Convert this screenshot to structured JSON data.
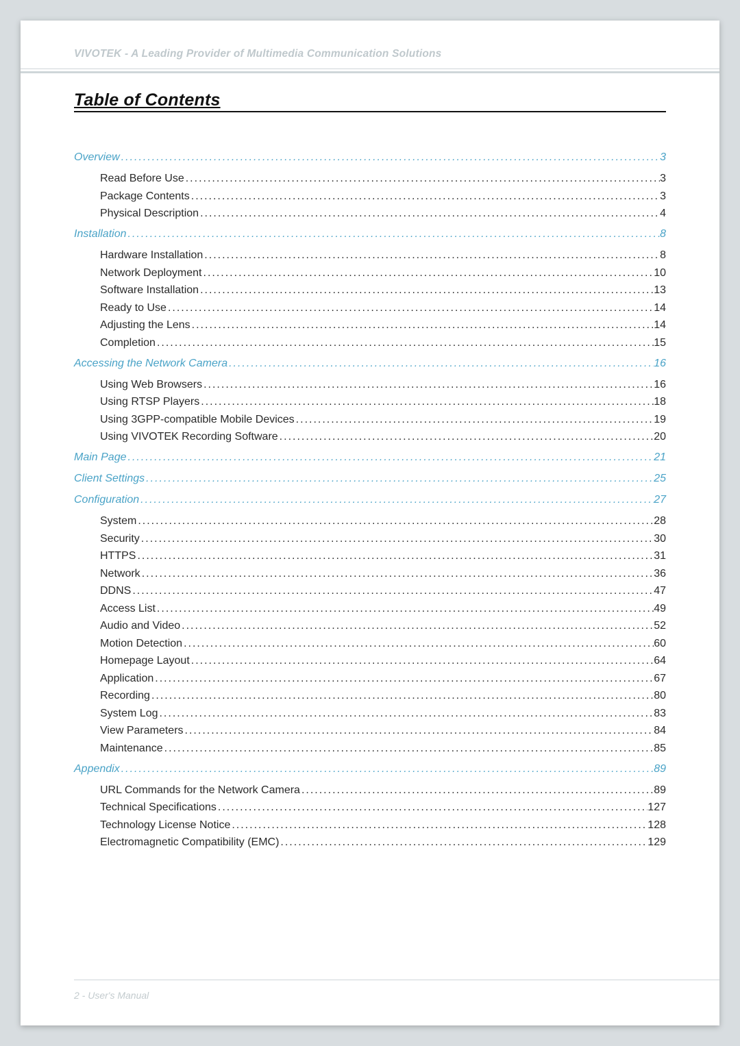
{
  "header": {
    "brand_line": "VIVOTEK - A Leading Provider of Multimedia Communication Solutions"
  },
  "title": "Table of Contents",
  "footer": {
    "text": "2 - User's Manual"
  },
  "colors": {
    "chapter_link": "#4aa3c7",
    "body_text": "#2a2a2a",
    "muted": "#c3cbce",
    "rule": "#cfd6d9",
    "page_bg": "#ffffff",
    "outer_bg": "#d8dde0"
  },
  "toc": [
    {
      "label": "Overview",
      "page": "3",
      "items": [
        {
          "label": "Read Before Use",
          "page": "3"
        },
        {
          "label": "Package Contents",
          "page": "3"
        },
        {
          "label": "Physical Description",
          "page": "4"
        }
      ]
    },
    {
      "label": "Installation",
      "page": "8",
      "items": [
        {
          "label": "Hardware Installation",
          "page": "8"
        },
        {
          "label": "Network Deployment",
          "page": "10"
        },
        {
          "label": "Software Installation",
          "page": "13"
        },
        {
          "label": "Ready to Use",
          "page": "14"
        },
        {
          "label": "Adjusting the Lens",
          "page": "14"
        },
        {
          "label": "Completion ",
          "page": "15"
        }
      ]
    },
    {
      "label": "Accessing the Network Camera",
      "page": "16",
      "items": [
        {
          "label": "Using Web Browsers",
          "page": "16"
        },
        {
          "label": "Using RTSP Players",
          "page": "18"
        },
        {
          "label": "Using 3GPP-compatible Mobile Devices",
          "page": "19"
        },
        {
          "label": "Using VIVOTEK Recording Software",
          "page": "20"
        }
      ]
    },
    {
      "label": "Main Page",
      "page": "21",
      "items": []
    },
    {
      "label": "Client Settings",
      "page": "25",
      "items": []
    },
    {
      "label": "Configuration",
      "page": "27",
      "items": [
        {
          "label": "System",
          "page": "28"
        },
        {
          "label": "Security",
          "page": "30"
        },
        {
          "label": "HTTPS",
          "page": "31"
        },
        {
          "label": "Network",
          "page": "36"
        },
        {
          "label": "DDNS",
          "page": "47"
        },
        {
          "label": "Access List",
          "page": "49"
        },
        {
          "label": "Audio and Video",
          "page": "52"
        },
        {
          "label": "Motion Detection",
          "page": "60"
        },
        {
          "label": "Homepage Layout",
          "page": "64"
        },
        {
          "label": "Application",
          "page": "67"
        },
        {
          "label": "Recording",
          "page": "80"
        },
        {
          "label": "System Log",
          "page": "83"
        },
        {
          "label": "View Parameters",
          "page": "84"
        },
        {
          "label": "Maintenance",
          "page": "85"
        }
      ]
    },
    {
      "label": "Appendix",
      "page": "89",
      "items": [
        {
          "label": "URL Commands for the Network Camera",
          "page": "89"
        },
        {
          "label": "Technical Specifications",
          "page": "127"
        },
        {
          "label": "Technology License Notice",
          "page": "128"
        },
        {
          "label": "Electromagnetic Compatibility (EMC)",
          "page": "129"
        }
      ]
    }
  ]
}
